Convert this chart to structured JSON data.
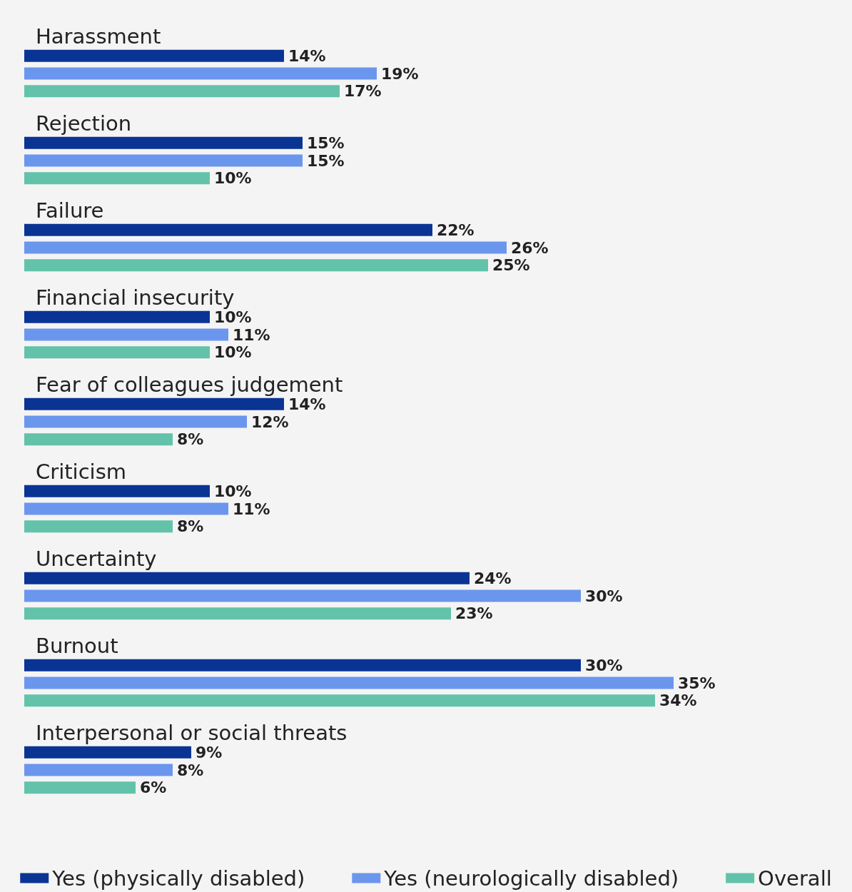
{
  "chart_data": {
    "type": "bar",
    "orientation": "horizontal",
    "legend": "bottom",
    "categories": [
      "Harassment",
      "Rejection",
      "Failure",
      "Financial insecurity",
      "Fear of colleagues judgement",
      "Criticism",
      "Uncertainty",
      "Burnout",
      "Interpersonal or social threats"
    ],
    "series": [
      {
        "name": "Yes (physically disabled)",
        "color": "#0a3494",
        "values": [
          14,
          15,
          22,
          10,
          14,
          10,
          24,
          30,
          9
        ],
        "value_labels": [
          "14%",
          "15%",
          "22%",
          "10%",
          "14%",
          "10%",
          "24%",
          "30%",
          "9%"
        ]
      },
      {
        "name": "Yes (neurologically disabled)",
        "color": "#6b96ee",
        "values": [
          19,
          15,
          26,
          11,
          12,
          11,
          30,
          35,
          8
        ],
        "value_labels": [
          "19%",
          "15%",
          "26%",
          "11%",
          "12%",
          "11%",
          "30%",
          "35%",
          "8%"
        ]
      },
      {
        "name": "Overall",
        "color": "#63c2aa",
        "values": [
          17,
          10,
          25,
          10,
          8,
          8,
          23,
          34,
          6
        ],
        "value_labels": [
          "17%",
          "10%",
          "25%",
          "10%",
          "8%",
          "8%",
          "23%",
          "34%",
          "6%"
        ]
      }
    ]
  }
}
